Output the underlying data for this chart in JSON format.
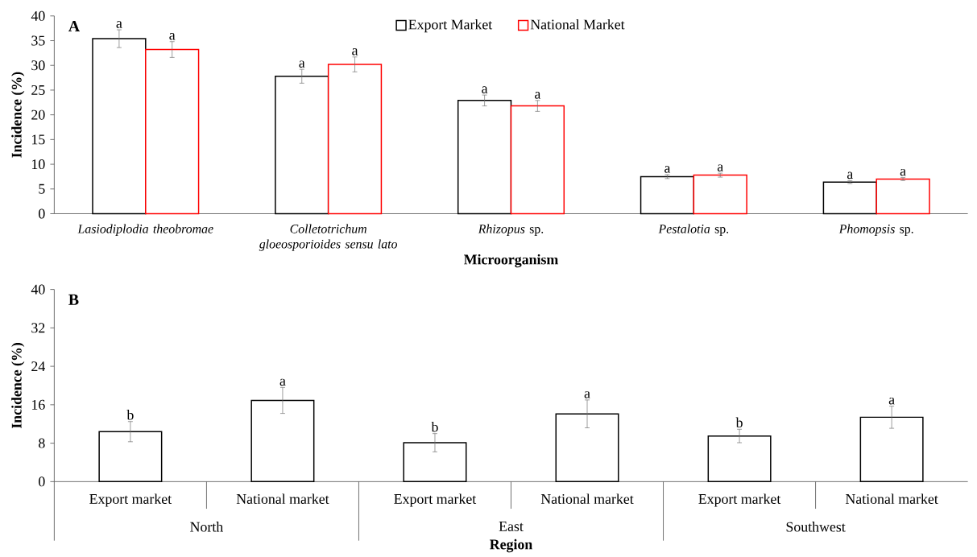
{
  "chart_data": [
    {
      "type": "bar",
      "title": "A",
      "xlabel": "Microorganism",
      "ylabel": "Incidence (%)",
      "categories": [
        "*Lasiodiplodia theobromae*",
        "*Colletotrichum gloeosporioides sensu lato*",
        "*Rhizopus* sp.",
        "*Pestalotia* sp.",
        "*Phomopsis* sp."
      ],
      "series": [
        {
          "name": "Export Market",
          "color": "#000000",
          "values": [
            35.4,
            27.8,
            22.9,
            7.5,
            6.4
          ],
          "errors": [
            1.8,
            1.4,
            1.1,
            0.4,
            0.3
          ],
          "value_labels": [
            "a",
            "a",
            "a",
            "a",
            "a"
          ]
        },
        {
          "name": "National Market",
          "color": "#ff0000",
          "values": [
            33.2,
            30.2,
            21.8,
            7.8,
            7.0
          ],
          "errors": [
            1.6,
            1.5,
            1.1,
            0.4,
            0.3
          ],
          "value_labels": [
            "a",
            "a",
            "a",
            "a",
            "a"
          ]
        }
      ],
      "ylim": [
        0,
        40
      ],
      "yticks": [
        0,
        5,
        10,
        15,
        20,
        25,
        30,
        35,
        40
      ],
      "legend": "top"
    },
    {
      "type": "bar",
      "title": "B",
      "xlabel": "Region",
      "ylabel": "Incidence (%)",
      "categories": [
        "Export market",
        "National market",
        "Export market",
        "National market",
        "Export market",
        "National market"
      ],
      "values": [
        10.4,
        16.9,
        8.1,
        14.1,
        9.5,
        13.4
      ],
      "color": "#000000",
      "errors": [
        2.1,
        2.7,
        1.9,
        2.9,
        1.4,
        2.3
      ],
      "value_labels": [
        "b",
        "a",
        "b",
        "a",
        "b",
        "a"
      ],
      "annotations": [
        "North",
        "East",
        "Southwest"
      ],
      "ylim": [
        0,
        40
      ],
      "yticks": [
        0,
        8,
        16,
        24,
        32,
        40
      ]
    }
  ]
}
